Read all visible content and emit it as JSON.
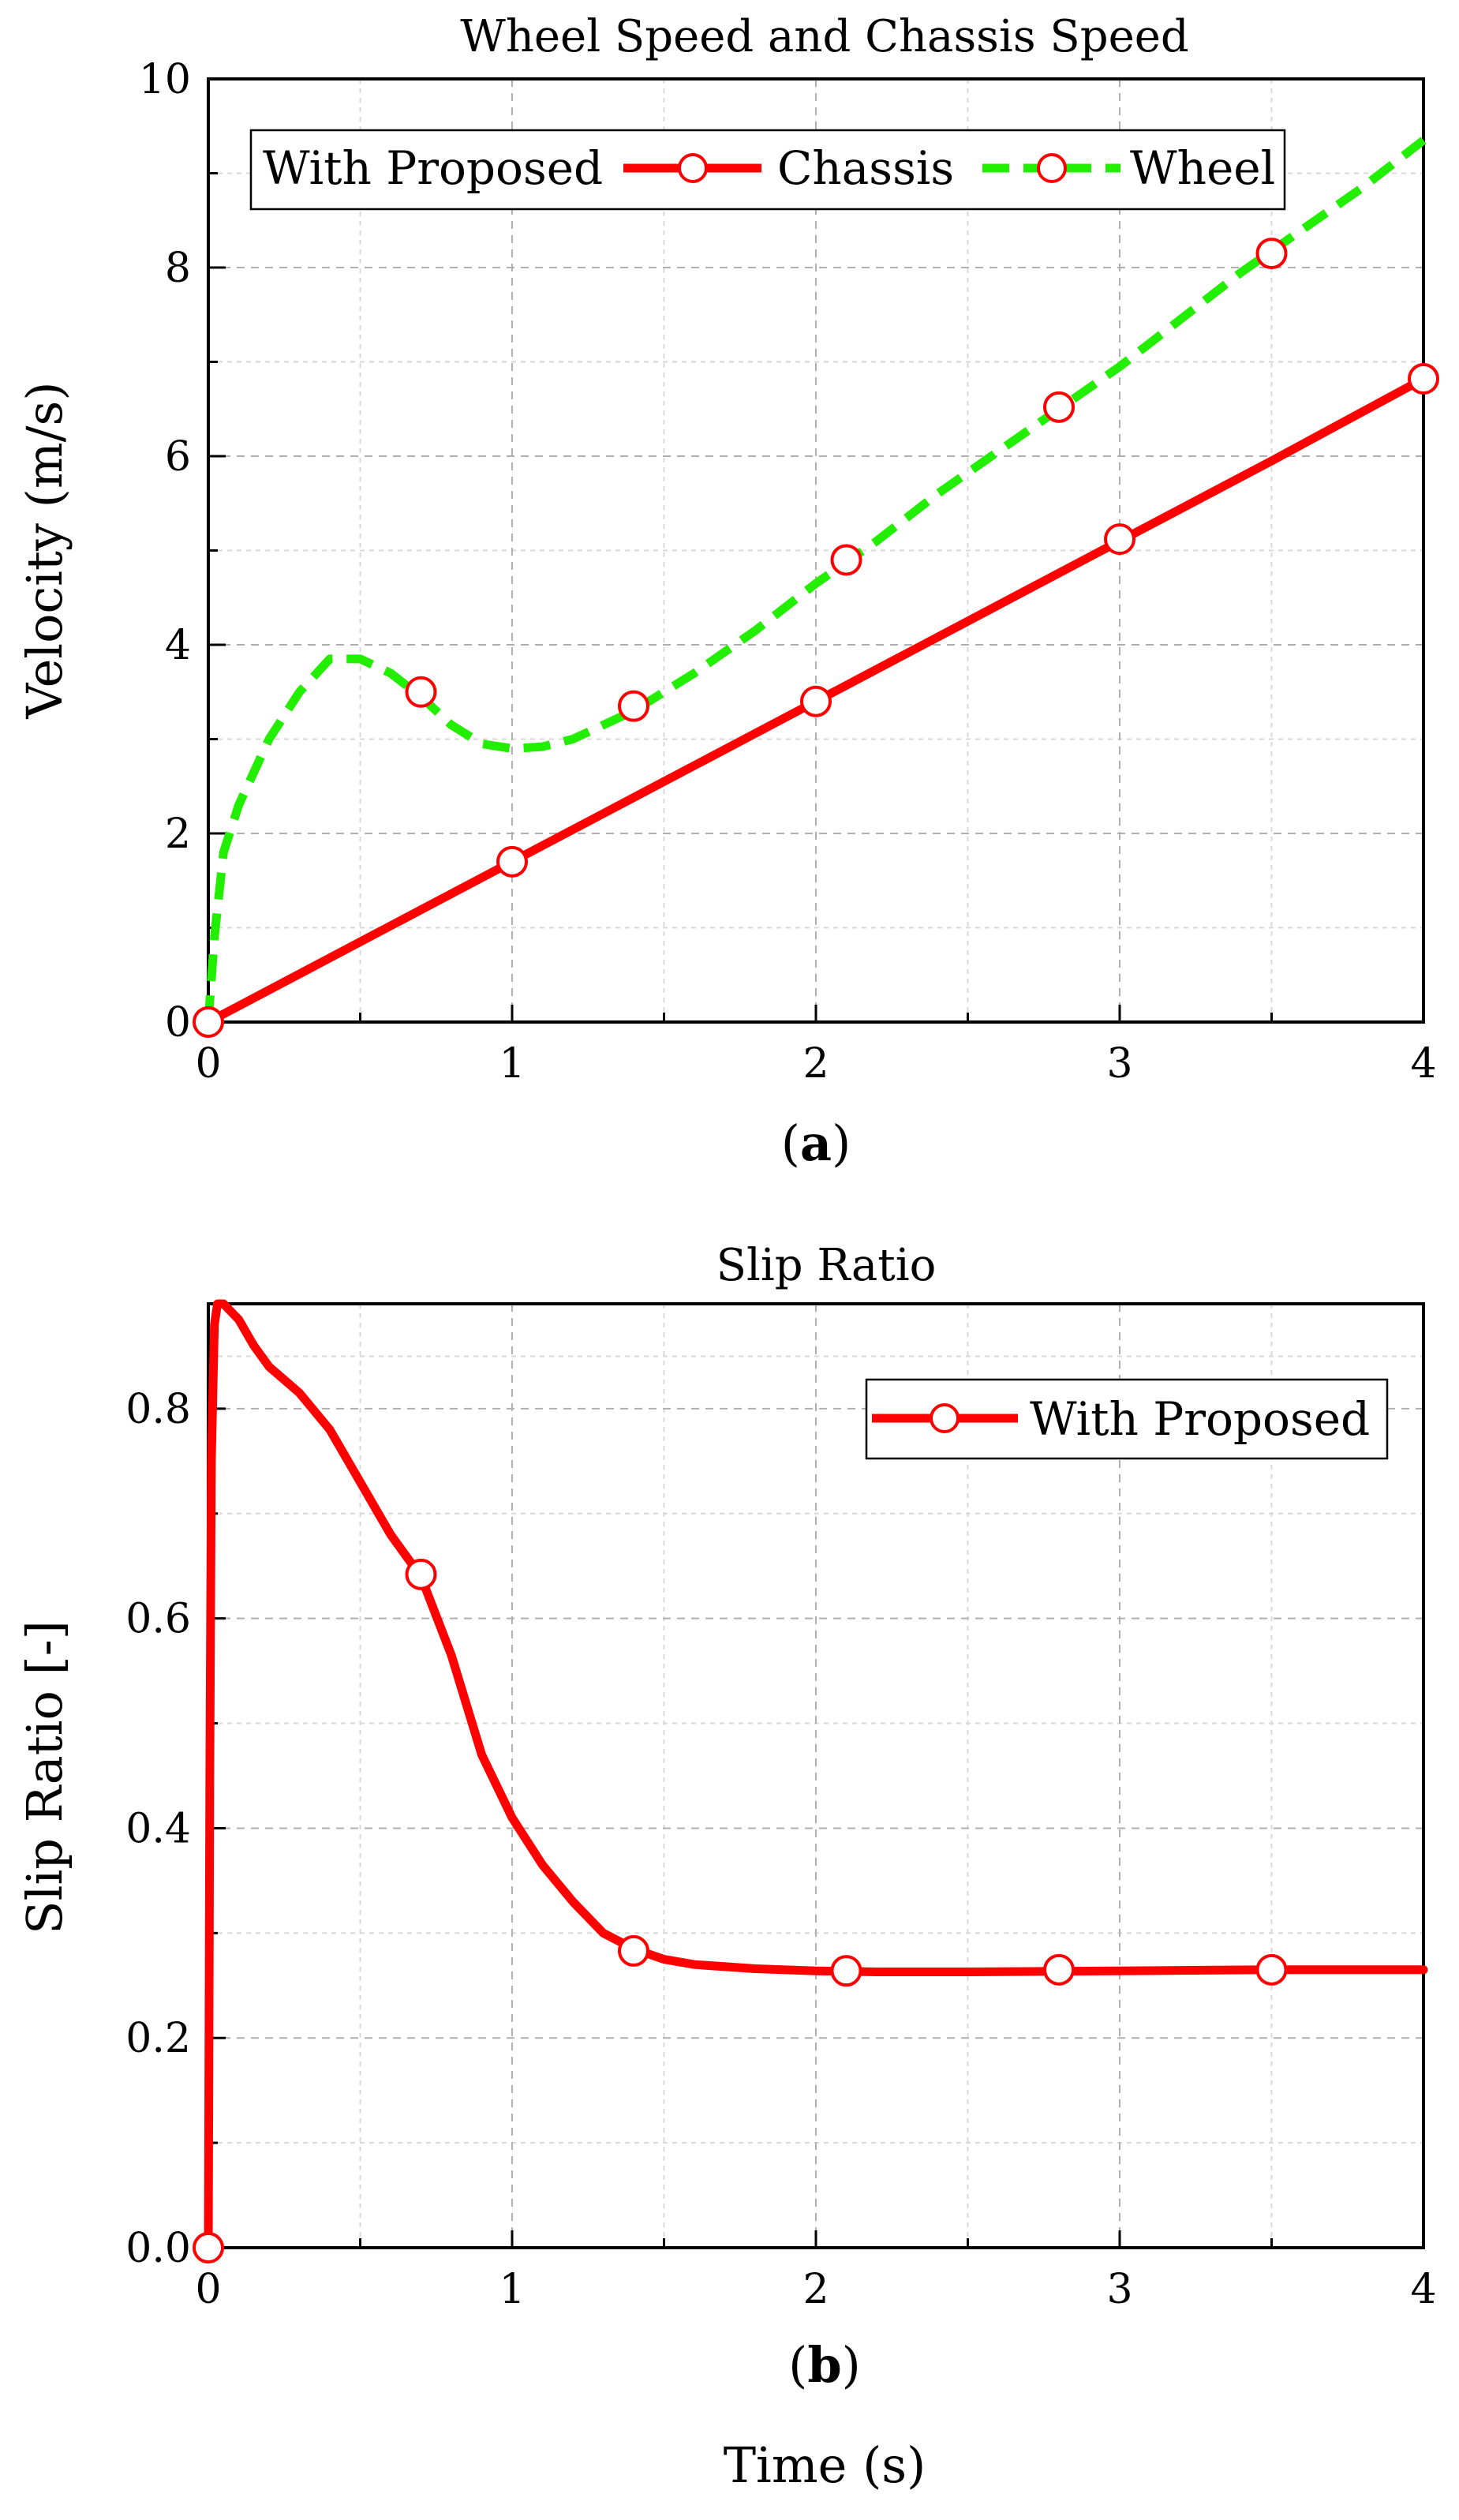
{
  "shared_xlabel": "Time (s)",
  "chart_data": [
    {
      "type": "line",
      "title": "Wheel Speed and Chassis Speed",
      "panel_prefix": "(",
      "panel_letter": "a",
      "panel_suffix": ")",
      "xlabel": "Time (s)",
      "ylabel": "Velocity (m/s)",
      "xlim": [
        0,
        4
      ],
      "ylim": [
        0,
        10
      ],
      "xticks": [
        0,
        1,
        2,
        3,
        4
      ],
      "yticks": [
        0,
        2,
        4,
        6,
        8,
        10
      ],
      "grid": true,
      "legend": {
        "title": "With Proposed",
        "placement": "top-left",
        "entries": [
          "Chassis",
          "Wheel"
        ]
      },
      "series": [
        {
          "name": "Chassis",
          "color": "#ff0000",
          "style": "solid",
          "x": [
            0,
            0.5,
            1,
            1.5,
            2,
            2.5,
            3,
            3.5,
            4
          ],
          "y": [
            0,
            0.85,
            1.7,
            2.55,
            3.4,
            4.25,
            5.1,
            5.95,
            6.82
          ],
          "marker_x": [
            0,
            1,
            2,
            3,
            4
          ],
          "marker_y": [
            0,
            1.7,
            3.4,
            5.12,
            6.82
          ]
        },
        {
          "name": "Wheel",
          "color": "#22ee00",
          "style": "dashed",
          "x": [
            0,
            0.02,
            0.05,
            0.1,
            0.2,
            0.3,
            0.4,
            0.5,
            0.6,
            0.7,
            0.8,
            0.9,
            1.0,
            1.1,
            1.2,
            1.4,
            1.6,
            1.8,
            2.0,
            2.2,
            2.4,
            2.6,
            2.8,
            3.0,
            3.2,
            3.4,
            3.6,
            3.8,
            4.0
          ],
          "y": [
            0.0,
            0.9,
            1.8,
            2.3,
            3.0,
            3.5,
            3.85,
            3.85,
            3.7,
            3.45,
            3.15,
            2.95,
            2.9,
            2.92,
            3.0,
            3.3,
            3.7,
            4.15,
            4.65,
            5.1,
            5.6,
            6.05,
            6.5,
            6.95,
            7.45,
            7.95,
            8.4,
            8.85,
            9.35
          ],
          "marker_x": [
            0.7,
            1.4,
            2.1,
            2.8,
            3.5
          ],
          "marker_y": [
            3.5,
            3.35,
            4.9,
            6.52,
            8.15
          ]
        }
      ]
    },
    {
      "type": "line",
      "title": "Slip Ratio",
      "panel_prefix": "(",
      "panel_letter": "b",
      "panel_suffix": ")",
      "xlabel": "Time (s)",
      "ylabel": "Slip Ratio [-]",
      "xlim": [
        0,
        4
      ],
      "ylim": [
        0,
        0.9
      ],
      "xticks": [
        0,
        1,
        2,
        3,
        4
      ],
      "yticks": [
        0.0,
        0.2,
        0.4,
        0.6,
        0.8
      ],
      "ytick_labels": [
        "0.0",
        "0.2",
        "0.4",
        "0.6",
        "0.8"
      ],
      "grid": true,
      "legend": {
        "placement": "top-right",
        "entries": [
          "With Proposed"
        ]
      },
      "series": [
        {
          "name": "With Proposed",
          "color": "#ff0000",
          "style": "solid",
          "x": [
            0,
            0.005,
            0.01,
            0.02,
            0.03,
            0.05,
            0.1,
            0.15,
            0.2,
            0.3,
            0.4,
            0.5,
            0.6,
            0.7,
            0.8,
            0.9,
            1.0,
            1.1,
            1.2,
            1.3,
            1.4,
            1.5,
            1.6,
            1.8,
            2.0,
            2.2,
            2.5,
            3.0,
            3.5,
            4.0
          ],
          "y": [
            0,
            0.45,
            0.75,
            0.88,
            0.9,
            0.9,
            0.885,
            0.86,
            0.84,
            0.815,
            0.78,
            0.73,
            0.68,
            0.64,
            0.565,
            0.47,
            0.41,
            0.365,
            0.33,
            0.3,
            0.285,
            0.275,
            0.27,
            0.266,
            0.264,
            0.263,
            0.263,
            0.264,
            0.265,
            0.265
          ],
          "marker_x": [
            0,
            0.7,
            1.4,
            2.1,
            2.8,
            3.5
          ],
          "marker_y": [
            0,
            0.642,
            0.283,
            0.264,
            0.265,
            0.265
          ]
        }
      ]
    }
  ]
}
